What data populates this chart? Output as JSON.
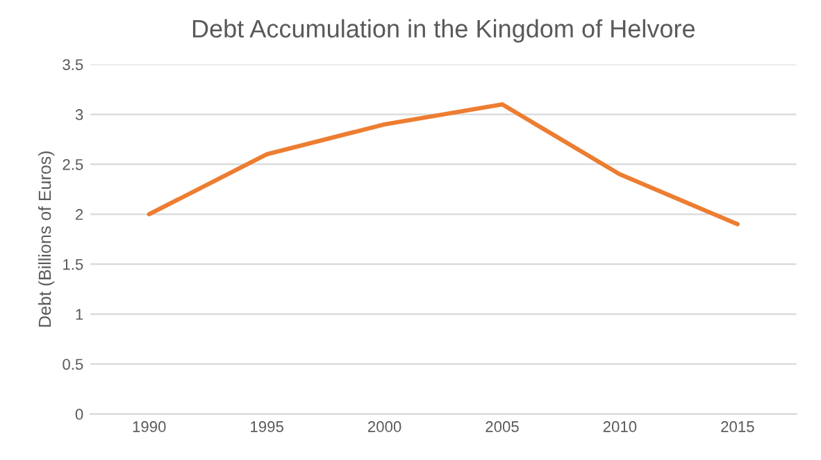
{
  "chart_data": {
    "type": "line",
    "title": "Debt Accumulation in the Kingdom of Helvore",
    "ylabel": "Debt (Billions of Euros)",
    "categories": [
      "1990",
      "1995",
      "2000",
      "2005",
      "2010",
      "2015"
    ],
    "series": [
      {
        "color": "#ed7d31",
        "values": [
          2.0,
          2.6,
          2.9,
          3.1,
          2.4,
          1.9
        ]
      }
    ],
    "ylim": [
      0,
      3.5
    ],
    "yticks": [
      0,
      0.5,
      1,
      1.5,
      2,
      2.5,
      3,
      3.5
    ],
    "grid": "y"
  }
}
